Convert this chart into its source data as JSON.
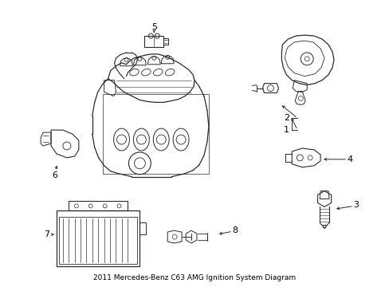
{
  "bg_color": "#ffffff",
  "line_color": "#2a2a2a",
  "label_color": "#000000",
  "fig_width": 4.89,
  "fig_height": 3.6,
  "dpi": 100,
  "title": "2011 Mercedes-Benz C63 AMG Ignition System Diagram"
}
